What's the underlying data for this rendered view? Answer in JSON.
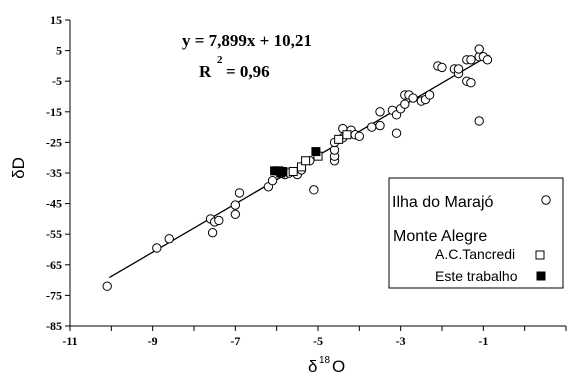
{
  "chart_data": {
    "type": "scatter",
    "xlabel_symbol": "δ",
    "xlabel_sup": "18",
    "xlabel_text": "O",
    "ylabel": "δD",
    "xlim": [
      -11,
      1
    ],
    "ylim": [
      -85,
      15
    ],
    "x_ticks": [
      "-11",
      "-9",
      "-7",
      "-5",
      "-3",
      "-1"
    ],
    "y_ticks": [
      "15",
      "5",
      "-5",
      "-15",
      "-25",
      "-35",
      "-45",
      "-55",
      "-65",
      "-75",
      "-85"
    ],
    "equation": "y = 7,899x + 10,21",
    "r2_label": "R",
    "r2_sup": "2",
    "r2_value": "= 0,96",
    "trendline": {
      "slope": 7.899,
      "intercept": 10.21,
      "x_range": [
        -10.05,
        -0.85
      ]
    },
    "legend": {
      "title": "Monte Alegre",
      "placement": "right",
      "entries": [
        {
          "key": "marajo",
          "label": "Ilha do Marajó",
          "marker": "open-circle"
        },
        {
          "key": "tancredi",
          "label": "A.C.Tancredi",
          "marker": "open-square"
        },
        {
          "key": "trabalho",
          "label": "Este trabalho",
          "marker": "filled-square"
        }
      ]
    },
    "series": [
      {
        "name": "Ilha do Marajó",
        "marker": "open-circle",
        "points": [
          [
            -10.1,
            -72
          ],
          [
            -8.9,
            -59.5
          ],
          [
            -8.6,
            -56.5
          ],
          [
            -7.6,
            -50
          ],
          [
            -7.5,
            -51
          ],
          [
            -7.55,
            -54.5
          ],
          [
            -7.4,
            -50.5
          ],
          [
            -7.0,
            -48.5
          ],
          [
            -7.0,
            -45.5
          ],
          [
            -6.9,
            -41.5
          ],
          [
            -6.2,
            -39.5
          ],
          [
            -6.1,
            -37.5
          ],
          [
            -5.8,
            -35.5
          ],
          [
            -5.7,
            -35
          ],
          [
            -5.5,
            -35.5
          ],
          [
            -5.4,
            -34
          ],
          [
            -5.2,
            -31
          ],
          [
            -5.1,
            -40.5
          ],
          [
            -4.6,
            -31
          ],
          [
            -4.6,
            -29.5
          ],
          [
            -4.6,
            -27.5
          ],
          [
            -4.6,
            -25
          ],
          [
            -4.4,
            -23.5
          ],
          [
            -4.4,
            -20.5
          ],
          [
            -4.2,
            -21
          ],
          [
            -4.1,
            -22.5
          ],
          [
            -4.0,
            -23
          ],
          [
            -3.7,
            -20
          ],
          [
            -3.5,
            -19.5
          ],
          [
            -3.5,
            -15
          ],
          [
            -3.2,
            -14.5
          ],
          [
            -3.1,
            -16
          ],
          [
            -3.1,
            -22
          ],
          [
            -3.0,
            -14
          ],
          [
            -2.9,
            -12.5
          ],
          [
            -2.9,
            -9.5
          ],
          [
            -2.8,
            -9.5
          ],
          [
            -2.7,
            -10.5
          ],
          [
            -2.5,
            -11.5
          ],
          [
            -2.4,
            -11
          ],
          [
            -2.3,
            -9.5
          ],
          [
            -2.1,
            0
          ],
          [
            -2.0,
            -0.5
          ],
          [
            -1.7,
            -1
          ],
          [
            -1.6,
            -2.5
          ],
          [
            -1.6,
            -1
          ],
          [
            -1.4,
            2
          ],
          [
            -1.4,
            -5
          ],
          [
            -1.3,
            -5.5
          ],
          [
            -1.3,
            2
          ],
          [
            -1.1,
            3
          ],
          [
            -1.1,
            5.5
          ],
          [
            -1.0,
            3
          ],
          [
            -0.9,
            2
          ],
          [
            -1.1,
            -18
          ]
        ]
      },
      {
        "name": "A.C.Tancredi",
        "marker": "open-square",
        "points": [
          [
            -5.6,
            -34.5
          ],
          [
            -5.4,
            -33
          ],
          [
            -5.3,
            -31
          ],
          [
            -5.0,
            -29.5
          ],
          [
            -4.5,
            -24
          ],
          [
            -4.3,
            -22.5
          ]
        ]
      },
      {
        "name": "Este trabalho",
        "marker": "filled-square",
        "points": [
          [
            -6.05,
            -34.3
          ],
          [
            -5.95,
            -34.3
          ],
          [
            -5.85,
            -34.5
          ],
          [
            -5.9,
            -35
          ],
          [
            -5.05,
            -28
          ]
        ]
      }
    ]
  }
}
